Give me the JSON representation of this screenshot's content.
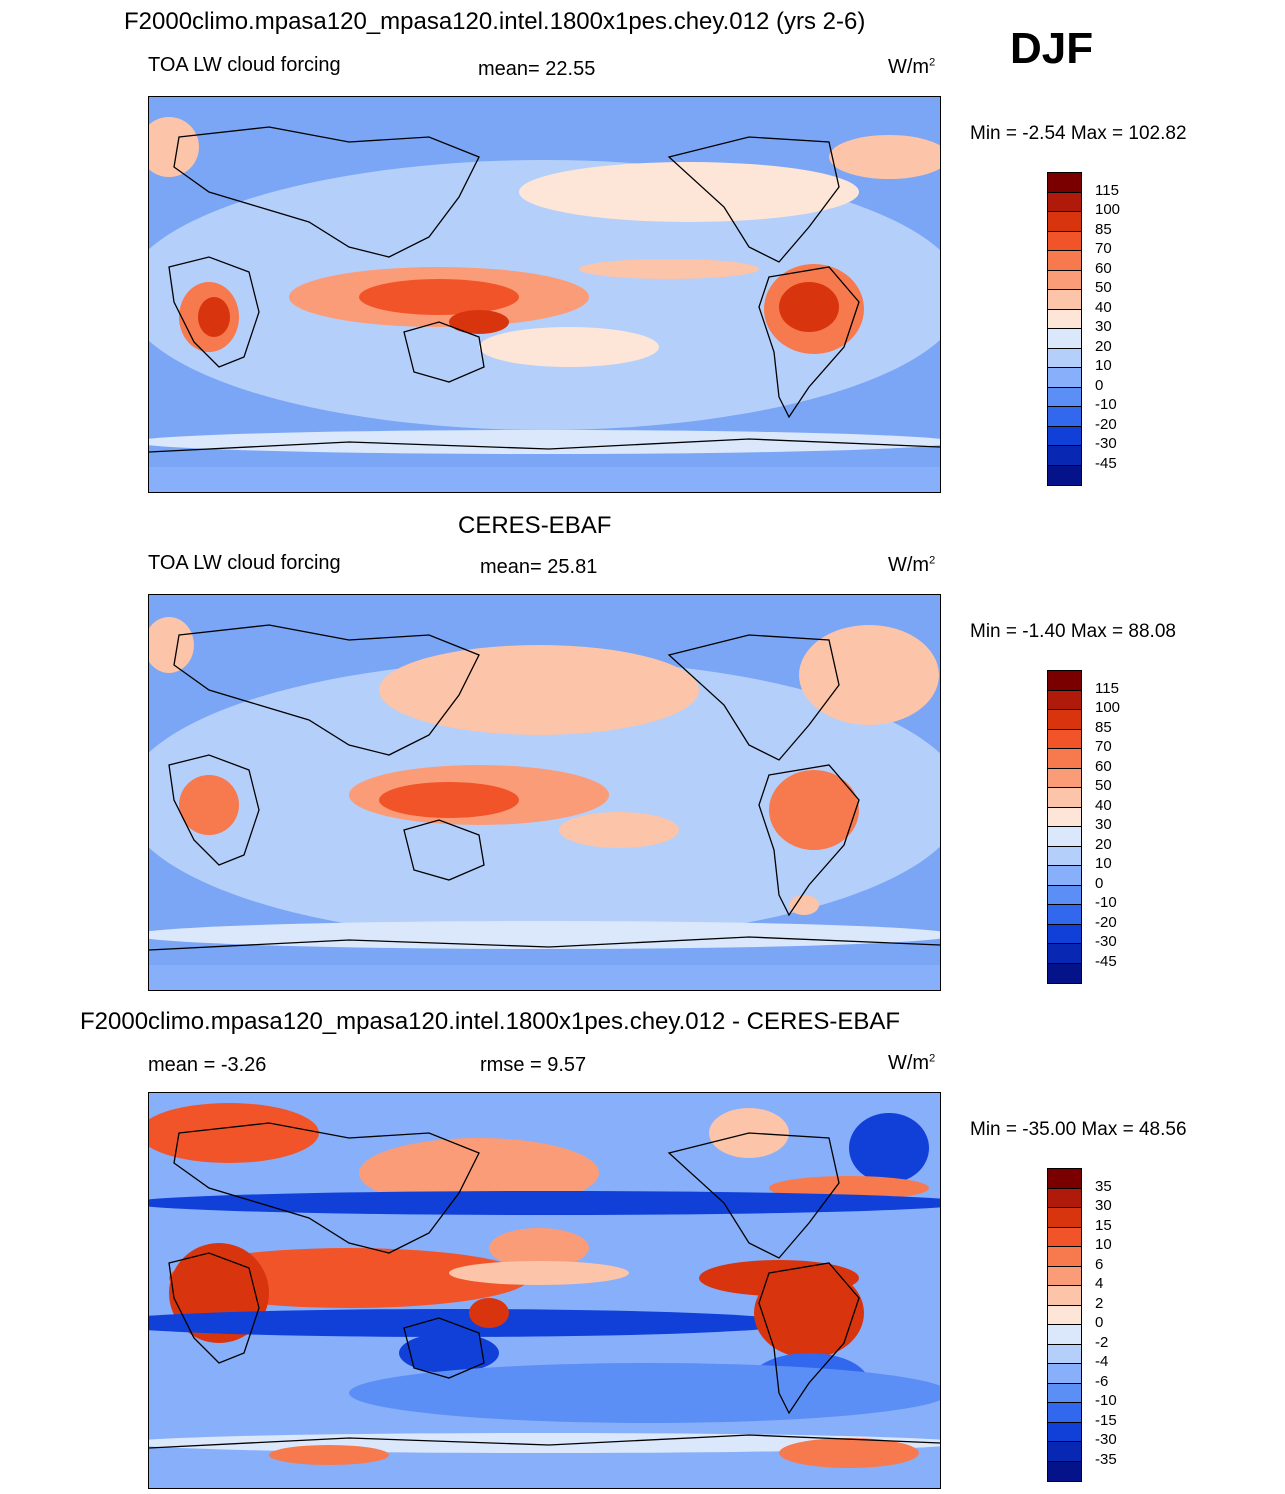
{
  "figure": {
    "season": "DJF",
    "units_base": "W/m",
    "units_exp": "2"
  },
  "panels": [
    {
      "header": "F2000climo.mpasa120_mpasa120.intel.1800x1pes.chey.012 (yrs 2-6)",
      "left_label": "TOA LW cloud forcing",
      "center_label": "mean=  22.55",
      "minmax": "Min =  -2.54 Max = 102.82",
      "colorbar": {
        "labels": [
          "115",
          "100",
          "85",
          "70",
          "60",
          "50",
          "40",
          "30",
          "20",
          "10",
          "0",
          "-10",
          "-20",
          "-30",
          "-45"
        ],
        "colors": [
          "#7a0000",
          "#b01a0a",
          "#d8350e",
          "#f2542a",
          "#f7794e",
          "#fb9c78",
          "#fcc4a8",
          "#fde6d8",
          "#dbe8fb",
          "#b5cffb",
          "#87affa",
          "#5c8ff5",
          "#3268ee",
          "#1040d8",
          "#0828b4",
          "#04138a"
        ]
      }
    },
    {
      "header": "CERES-EBAF",
      "left_label": "TOA LW cloud forcing",
      "center_label": "mean=  25.81",
      "minmax": "Min =  -1.40 Max =  88.08",
      "colorbar": {
        "labels": [
          "115",
          "100",
          "85",
          "70",
          "60",
          "50",
          "40",
          "30",
          "20",
          "10",
          "0",
          "-10",
          "-20",
          "-30",
          "-45"
        ],
        "colors": [
          "#7a0000",
          "#b01a0a",
          "#d8350e",
          "#f2542a",
          "#f7794e",
          "#fb9c78",
          "#fcc4a8",
          "#fde6d8",
          "#dbe8fb",
          "#b5cffb",
          "#87affa",
          "#5c8ff5",
          "#3268ee",
          "#1040d8",
          "#0828b4",
          "#04138a"
        ]
      }
    },
    {
      "header": "F2000climo.mpasa120_mpasa120.intel.1800x1pes.chey.012 - CERES-EBAF",
      "left_label": "mean =  -3.26",
      "center_label": "rmse =   9.57",
      "minmax": "Min = -35.00 Max =  48.56",
      "colorbar": {
        "labels": [
          "35",
          "30",
          "15",
          "10",
          "6",
          "4",
          "2",
          "0",
          "-2",
          "-4",
          "-6",
          "-10",
          "-15",
          "-30",
          "-35"
        ],
        "colors": [
          "#7a0000",
          "#b01a0a",
          "#d8350e",
          "#f2542a",
          "#f7794e",
          "#fb9c78",
          "#fcc4a8",
          "#fde6d8",
          "#dbe8fb",
          "#b5cffb",
          "#87affa",
          "#5c8ff5",
          "#3268ee",
          "#1040d8",
          "#0828b4",
          "#04138a"
        ]
      }
    }
  ]
}
